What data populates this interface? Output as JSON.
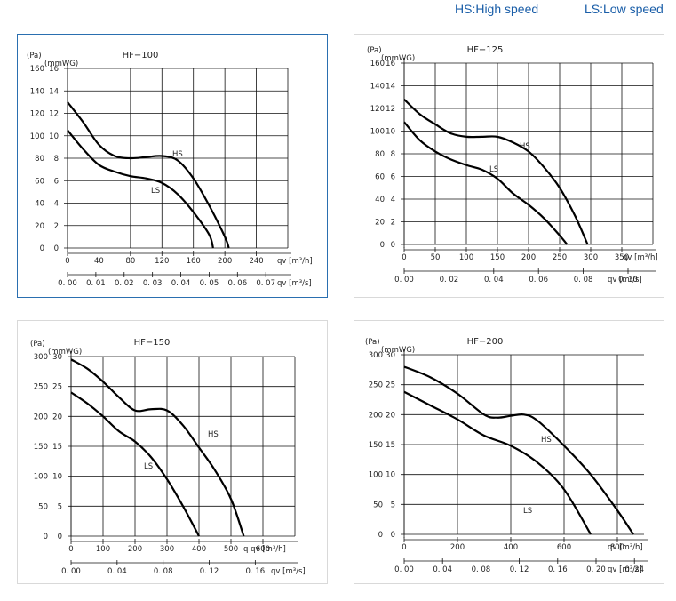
{
  "legend": {
    "hs": "HS:High speed",
    "ls": "LS:Low speed"
  },
  "chart_data": [
    {
      "type": "line",
      "title": "HF−100",
      "pa_unit": "(Pa)",
      "mmwg_unit": "(mmWG)",
      "pa_ticks": [
        "0",
        "20",
        "40",
        "60",
        "80",
        "100",
        "120",
        "140",
        "160"
      ],
      "mmwg_ticks": [
        "0",
        "2",
        "4",
        "6",
        "8",
        "10",
        "12",
        "14",
        "16"
      ],
      "ylim": [
        0,
        160
      ],
      "x_ticks": [
        "0",
        "40",
        "80",
        "120",
        "160",
        "200",
        "240"
      ],
      "x_unit_label": "qv [m³/h]",
      "x2_ticks": [
        "0. 00",
        "0. 01",
        "0. 02",
        "0. 03",
        "0. 04",
        "0. 05",
        "0. 06",
        "0. 07"
      ],
      "x2_unit_label": "qv [m³/s]",
      "xlim": [
        0,
        280
      ],
      "series": [
        {
          "name": "HS",
          "label": "HS",
          "x": [
            0,
            20,
            40,
            60,
            80,
            100,
            120,
            140,
            160,
            180,
            200,
            205
          ],
          "y": [
            130,
            112,
            92,
            82,
            80,
            81,
            82,
            78,
            62,
            38,
            10,
            0
          ]
        },
        {
          "name": "LS",
          "label": "LS",
          "x": [
            0,
            20,
            40,
            60,
            80,
            100,
            120,
            140,
            160,
            180,
            185
          ],
          "y": [
            105,
            88,
            74,
            68,
            64,
            62,
            58,
            48,
            32,
            12,
            0
          ]
        }
      ]
    },
    {
      "type": "line",
      "title": "HF−125",
      "pa_unit": "(Pa)",
      "mmwg_unit": "(mmWG)",
      "pa_ticks": [
        "0",
        "20",
        "40",
        "60",
        "80",
        "100",
        "120",
        "140",
        "160"
      ],
      "mmwg_ticks": [
        "0",
        "2",
        "4",
        "6",
        "8",
        "10",
        "12",
        "14",
        "16"
      ],
      "ylim": [
        0,
        160
      ],
      "x_ticks": [
        "0",
        "50",
        "100",
        "150",
        "200",
        "250",
        "300",
        "350"
      ],
      "x_unit_label": "qv [m³/h]",
      "x2_ticks": [
        "0. 00",
        "0. 02",
        "0. 04",
        "0. 06",
        "0. 08",
        "0. 10"
      ],
      "x2_unit_label": "qv [m³/s]",
      "xlim": [
        0,
        400
      ],
      "series": [
        {
          "name": "HS",
          "label": "HS",
          "x": [
            0,
            25,
            50,
            75,
            100,
            125,
            150,
            175,
            200,
            225,
            250,
            275,
            295
          ],
          "y": [
            128,
            115,
            106,
            98,
            95,
            95,
            95,
            90,
            82,
            68,
            50,
            25,
            0
          ]
        },
        {
          "name": "LS",
          "label": "LS",
          "x": [
            0,
            25,
            50,
            75,
            100,
            125,
            150,
            175,
            200,
            225,
            250,
            262
          ],
          "y": [
            108,
            92,
            82,
            75,
            70,
            66,
            58,
            45,
            35,
            23,
            8,
            0
          ]
        }
      ]
    },
    {
      "type": "line",
      "title": "HF−150",
      "pa_unit": "(Pa)",
      "mmwg_unit": "(mmWG)",
      "pa_ticks": [
        "0",
        "50",
        "100",
        "150",
        "200",
        "250",
        "300"
      ],
      "mmwg_ticks": [
        "0",
        "5",
        "10",
        "15",
        "20",
        "25",
        "30"
      ],
      "ylim": [
        0,
        300
      ],
      "x_ticks": [
        "0",
        "100",
        "200",
        "300",
        "400",
        "500",
        "600"
      ],
      "x_unit_label": "q   qv [m³/h]",
      "x2_ticks": [
        "0. 00",
        "0. 04",
        "0. 08",
        "0. 12",
        "0. 16"
      ],
      "x2_unit_label": "qv [m³/s]",
      "xlim": [
        0,
        700
      ],
      "series": [
        {
          "name": "HS",
          "label": "HS",
          "x": [
            0,
            50,
            100,
            150,
            200,
            250,
            300,
            350,
            400,
            450,
            500,
            540
          ],
          "y": [
            295,
            280,
            258,
            232,
            210,
            212,
            210,
            185,
            148,
            110,
            62,
            0
          ]
        },
        {
          "name": "LS",
          "label": "LS",
          "x": [
            0,
            50,
            100,
            150,
            200,
            250,
            300,
            350,
            400
          ],
          "y": [
            240,
            222,
            200,
            175,
            158,
            132,
            95,
            50,
            0
          ]
        }
      ]
    },
    {
      "type": "line",
      "title": "HF−200",
      "pa_unit": "(Pa)",
      "mmwg_unit": "(mmWG)",
      "pa_ticks": [
        "0",
        "50",
        "100",
        "150",
        "200",
        "250",
        "300"
      ],
      "mmwg_ticks": [
        "0",
        "5",
        "10",
        "15",
        "20",
        "25",
        "30"
      ],
      "ylim": [
        0,
        300
      ],
      "x_ticks": [
        "0",
        "200",
        "400",
        "600",
        "800"
      ],
      "x_unit_label": "qv [m³/h]",
      "x2_ticks": [
        "0. 00",
        "0. 04",
        "0. 08",
        "0. 12",
        "0. 16",
        "0. 20",
        "0. 24"
      ],
      "x2_unit_label": "qv [m³/s]",
      "xlim": [
        0,
        900
      ],
      "series": [
        {
          "name": "HS",
          "label": "HS",
          "x": [
            0,
            100,
            200,
            300,
            350,
            400,
            450,
            500,
            600,
            700,
            800,
            860
          ],
          "y": [
            280,
            262,
            235,
            200,
            195,
            198,
            200,
            190,
            148,
            100,
            40,
            0
          ]
        },
        {
          "name": "LS",
          "label": "LS",
          "x": [
            0,
            100,
            200,
            300,
            400,
            500,
            600,
            700
          ],
          "y": [
            238,
            215,
            192,
            165,
            148,
            120,
            75,
            0
          ]
        }
      ]
    }
  ]
}
